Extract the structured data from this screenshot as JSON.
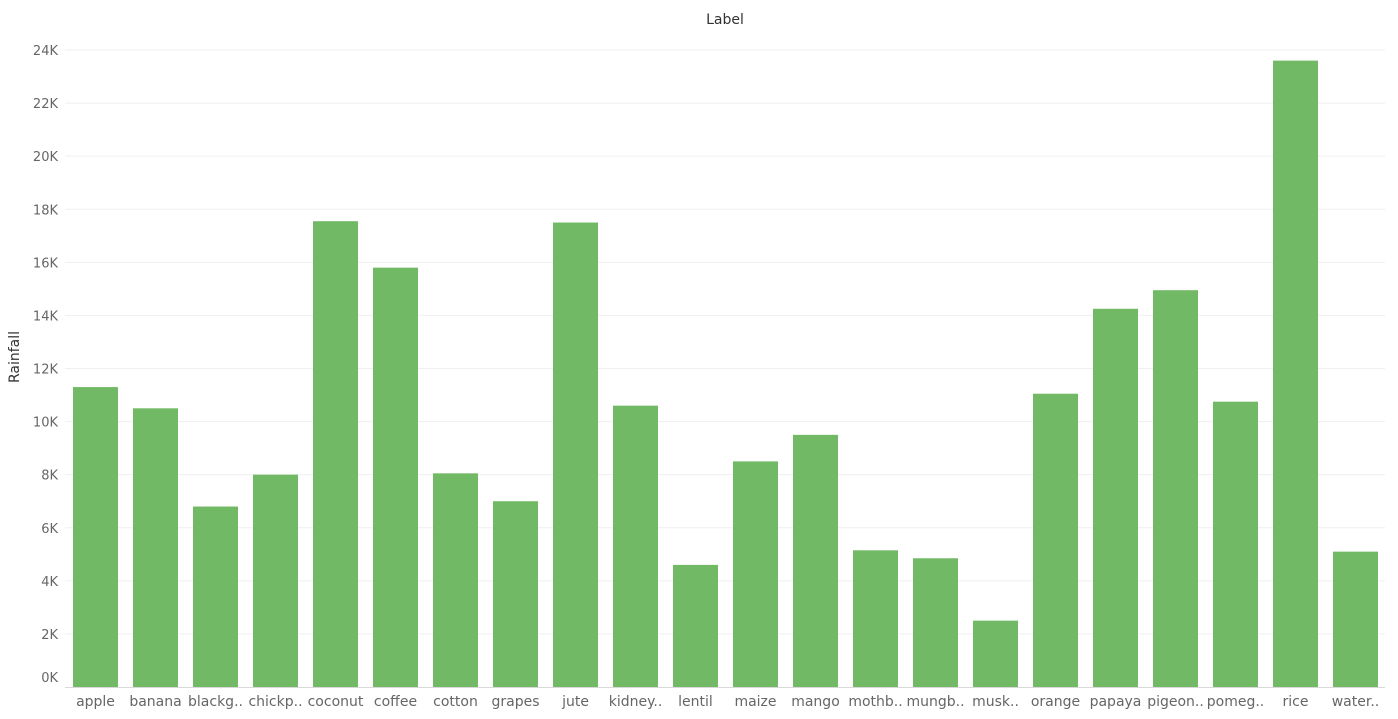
{
  "chart_data": {
    "type": "bar",
    "title": "Label",
    "xlabel": "",
    "ylabel": "Rainfall",
    "ylim": [
      0,
      24000
    ],
    "yticks": [
      "0K",
      "2K",
      "4K",
      "6K",
      "8K",
      "10K",
      "12K",
      "14K",
      "16K",
      "18K",
      "20K",
      "22K",
      "24K"
    ],
    "grid": true,
    "bar_color": "#71b964",
    "categories": [
      "apple",
      "banana",
      "blackg..",
      "chickp..",
      "coconut",
      "coffee",
      "cotton",
      "grapes",
      "jute",
      "kidney..",
      "lentil",
      "maize",
      "mango",
      "mothb..",
      "mungb..",
      "musk..",
      "orange",
      "papaya",
      "pigeon..",
      "pomeg..",
      "rice",
      "water.."
    ],
    "values": [
      11300,
      10500,
      6800,
      8000,
      17550,
      15800,
      8050,
      7000,
      17500,
      10600,
      4600,
      8500,
      9500,
      5150,
      4850,
      2500,
      11050,
      14250,
      14950,
      10750,
      23600,
      5100
    ]
  }
}
